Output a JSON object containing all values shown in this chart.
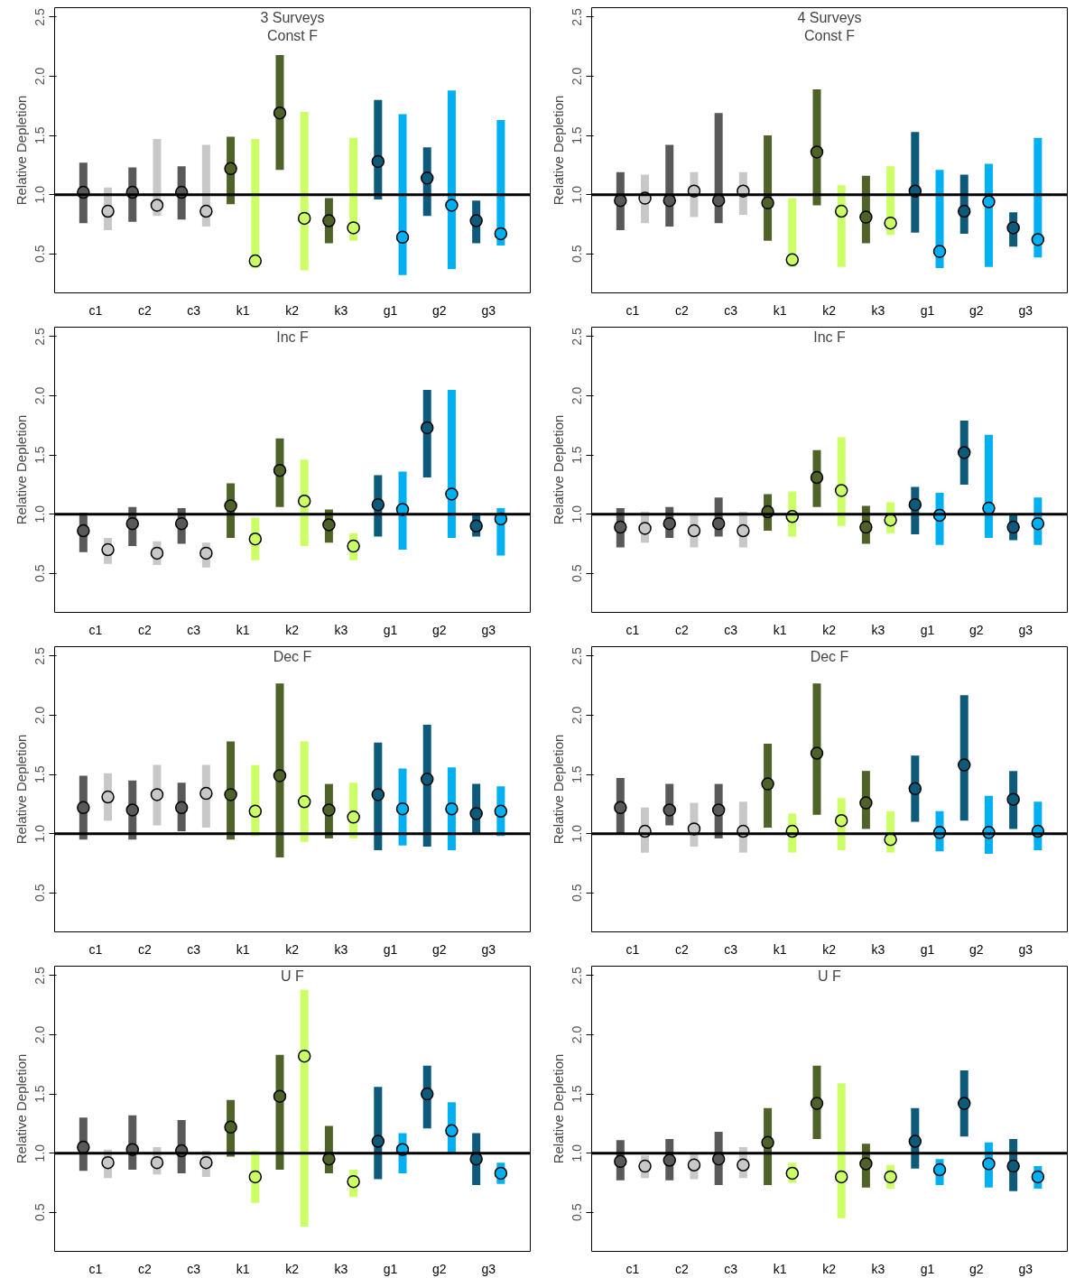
{
  "chart_data": [
    {
      "type": "scatter",
      "title": "3 Surveys\nConst F",
      "ylabel": "Relative Depletion",
      "categories": [
        "c1",
        "c2",
        "c3",
        "k1",
        "k2",
        "k3",
        "g1",
        "g2",
        "g3"
      ],
      "ylim": [
        0.17,
        2.58
      ],
      "yticks": [
        {
          "value": 0.5,
          "label": "0.5"
        },
        {
          "value": 1,
          "label": "1.0"
        },
        {
          "value": 1.5,
          "label": "1.5"
        },
        {
          "value": 2,
          "label": "2.0"
        },
        {
          "value": 2.5,
          "label": "2.5"
        }
      ],
      "ref_lines": [
        {
          "axis": "y",
          "value": 1,
          "color": "#000000"
        }
      ],
      "marker": "circle",
      "series": [
        {
          "colors": [
            "#595959",
            "#595959",
            "#595959",
            "#4f6228",
            "#4f6228",
            "#4f6228",
            "#0e5a7a",
            "#0e5a7a",
            "#0e5a7a"
          ],
          "values": [
            1.02,
            1.02,
            1.02,
            1.22,
            1.69,
            0.78,
            1.28,
            1.14,
            0.78
          ],
          "errors": [
            [
              0.76,
              1.27
            ],
            [
              0.77,
              1.23
            ],
            [
              0.79,
              1.24
            ],
            [
              0.92,
              1.49
            ],
            [
              1.21,
              2.18
            ],
            [
              0.59,
              0.97
            ],
            [
              0.96,
              1.8
            ],
            [
              0.82,
              1.4
            ],
            [
              0.59,
              0.95
            ]
          ]
        },
        {
          "colors": [
            "#c8c8c8",
            "#c8c8c8",
            "#c8c8c8",
            "#ccff66",
            "#ccff66",
            "#ccff66",
            "#00b0f0",
            "#00b0f0",
            "#00b0f0"
          ],
          "values": [
            0.86,
            0.91,
            0.86,
            0.44,
            0.8,
            0.72,
            0.64,
            0.91,
            0.67
          ],
          "errors": [
            [
              0.7,
              1.06
            ],
            [
              0.82,
              1.47
            ],
            [
              0.73,
              1.42
            ],
            [
              0.38,
              1.47
            ],
            [
              0.36,
              1.7
            ],
            [
              0.61,
              1.48
            ],
            [
              0.32,
              1.68
            ],
            [
              0.37,
              1.88
            ],
            [
              0.57,
              1.63
            ]
          ]
        }
      ]
    },
    {
      "type": "scatter",
      "title": "4 Surveys\nConst F",
      "ylabel": "Relative Depletion",
      "categories": [
        "c1",
        "c2",
        "c3",
        "k1",
        "k2",
        "k3",
        "g1",
        "g2",
        "g3"
      ],
      "ylim": [
        0.17,
        2.58
      ],
      "yticks": [
        {
          "value": 0.5,
          "label": "0.5"
        },
        {
          "value": 1,
          "label": "1.0"
        },
        {
          "value": 1.5,
          "label": "1.5"
        },
        {
          "value": 2,
          "label": "2.0"
        },
        {
          "value": 2.5,
          "label": "2.5"
        }
      ],
      "ref_lines": [
        {
          "axis": "y",
          "value": 1,
          "color": "#000000"
        }
      ],
      "marker": "circle",
      "series": [
        {
          "colors": [
            "#595959",
            "#595959",
            "#595959",
            "#4f6228",
            "#4f6228",
            "#4f6228",
            "#0e5a7a",
            "#0e5a7a",
            "#0e5a7a"
          ],
          "values": [
            0.95,
            0.95,
            0.95,
            0.93,
            1.36,
            0.81,
            1.03,
            0.86,
            0.72
          ],
          "errors": [
            [
              0.7,
              1.19
            ],
            [
              0.73,
              1.42
            ],
            [
              0.76,
              1.69
            ],
            [
              0.61,
              1.5
            ],
            [
              0.91,
              1.89
            ],
            [
              0.59,
              1.16
            ],
            [
              0.68,
              1.53
            ],
            [
              0.67,
              1.17
            ],
            [
              0.56,
              0.85
            ]
          ]
        },
        {
          "colors": [
            "#c8c8c8",
            "#c8c8c8",
            "#c8c8c8",
            "#ccff66",
            "#ccff66",
            "#ccff66",
            "#00b0f0",
            "#00b0f0",
            "#00b0f0"
          ],
          "values": [
            0.97,
            1.03,
            1.03,
            0.45,
            0.86,
            0.76,
            0.52,
            0.94,
            0.62
          ],
          "errors": [
            [
              0.76,
              1.17
            ],
            [
              0.81,
              1.19
            ],
            [
              0.83,
              1.19
            ],
            [
              0.39,
              0.97
            ],
            [
              0.39,
              1.08
            ],
            [
              0.66,
              1.24
            ],
            [
              0.38,
              1.21
            ],
            [
              0.39,
              1.26
            ],
            [
              0.47,
              1.48
            ]
          ]
        }
      ]
    },
    {
      "type": "scatter",
      "title": "Inc F",
      "ylabel": "Relative Depletion",
      "categories": [
        "c1",
        "c2",
        "c3",
        "k1",
        "k2",
        "k3",
        "g1",
        "g2",
        "g3"
      ],
      "ylim": [
        0.17,
        2.58
      ],
      "yticks": [
        {
          "value": 0.5,
          "label": "0.5"
        },
        {
          "value": 1,
          "label": "1.0"
        },
        {
          "value": 1.5,
          "label": "1.5"
        },
        {
          "value": 2,
          "label": "2.0"
        },
        {
          "value": 2.5,
          "label": "2.5"
        }
      ],
      "ref_lines": [
        {
          "axis": "y",
          "value": 1,
          "color": "#000000"
        }
      ],
      "marker": "circle",
      "series": [
        {
          "colors": [
            "#595959",
            "#595959",
            "#595959",
            "#4f6228",
            "#4f6228",
            "#4f6228",
            "#0e5a7a",
            "#0e5a7a",
            "#0e5a7a"
          ],
          "values": [
            0.86,
            0.92,
            0.92,
            1.07,
            1.37,
            0.91,
            1.08,
            1.73,
            0.9
          ],
          "errors": [
            [
              0.68,
              1.01
            ],
            [
              0.73,
              1.06
            ],
            [
              0.75,
              1.05
            ],
            [
              0.8,
              1.26
            ],
            [
              1.06,
              1.64
            ],
            [
              0.76,
              1.04
            ],
            [
              0.81,
              1.33
            ],
            [
              1.31,
              2.05
            ],
            [
              0.81,
              1.01
            ]
          ]
        },
        {
          "colors": [
            "#c8c8c8",
            "#c8c8c8",
            "#c8c8c8",
            "#ccff66",
            "#ccff66",
            "#ccff66",
            "#00b0f0",
            "#00b0f0",
            "#00b0f0"
          ],
          "values": [
            0.7,
            0.67,
            0.67,
            0.79,
            1.11,
            0.73,
            1.04,
            1.17,
            0.96
          ],
          "errors": [
            [
              0.58,
              0.8
            ],
            [
              0.57,
              0.77
            ],
            [
              0.55,
              0.76
            ],
            [
              0.61,
              0.97
            ],
            [
              0.73,
              1.46
            ],
            [
              0.61,
              0.84
            ],
            [
              0.7,
              1.36
            ],
            [
              0.8,
              2.05
            ],
            [
              0.65,
              1.05
            ]
          ]
        }
      ]
    },
    {
      "type": "scatter",
      "title": "Inc F",
      "ylabel": "Relative Depletion",
      "categories": [
        "c1",
        "c2",
        "c3",
        "k1",
        "k2",
        "k3",
        "g1",
        "g2",
        "g3"
      ],
      "ylim": [
        0.17,
        2.58
      ],
      "yticks": [
        {
          "value": 0.5,
          "label": "0.5"
        },
        {
          "value": 1,
          "label": "1.0"
        },
        {
          "value": 1.5,
          "label": "1.5"
        },
        {
          "value": 2,
          "label": "2.0"
        },
        {
          "value": 2.5,
          "label": "2.5"
        }
      ],
      "ref_lines": [
        {
          "axis": "y",
          "value": 1,
          "color": "#000000"
        }
      ],
      "marker": "circle",
      "series": [
        {
          "colors": [
            "#595959",
            "#595959",
            "#595959",
            "#4f6228",
            "#4f6228",
            "#4f6228",
            "#0e5a7a",
            "#0e5a7a",
            "#0e5a7a"
          ],
          "values": [
            0.89,
            0.92,
            0.92,
            1.02,
            1.31,
            0.89,
            1.08,
            1.52,
            0.89
          ],
          "errors": [
            [
              0.72,
              1.05
            ],
            [
              0.8,
              1.06
            ],
            [
              0.81,
              1.14
            ],
            [
              0.86,
              1.17
            ],
            [
              1.06,
              1.54
            ],
            [
              0.75,
              1.07
            ],
            [
              0.83,
              1.23
            ],
            [
              1.25,
              1.79
            ],
            [
              0.78,
              1.0
            ]
          ]
        },
        {
          "colors": [
            "#c8c8c8",
            "#c8c8c8",
            "#c8c8c8",
            "#ccff66",
            "#ccff66",
            "#ccff66",
            "#00b0f0",
            "#00b0f0",
            "#00b0f0"
          ],
          "values": [
            0.88,
            0.86,
            0.86,
            0.98,
            1.2,
            0.95,
            0.99,
            1.05,
            0.92
          ],
          "errors": [
            [
              0.76,
              1.02
            ],
            [
              0.72,
              1.0
            ],
            [
              0.72,
              1.02
            ],
            [
              0.81,
              1.19
            ],
            [
              0.9,
              1.65
            ],
            [
              0.84,
              1.1
            ],
            [
              0.74,
              1.18
            ],
            [
              0.8,
              1.67
            ],
            [
              0.74,
              1.14
            ]
          ]
        }
      ]
    },
    {
      "type": "scatter",
      "title": "Dec F",
      "ylabel": "Relative Depletion",
      "categories": [
        "c1",
        "c2",
        "c3",
        "k1",
        "k2",
        "k3",
        "g1",
        "g2",
        "g3"
      ],
      "ylim": [
        0.17,
        2.58
      ],
      "yticks": [
        {
          "value": 0.5,
          "label": "0.5"
        },
        {
          "value": 1,
          "label": "1.0"
        },
        {
          "value": 1.5,
          "label": "1.5"
        },
        {
          "value": 2,
          "label": "2.0"
        },
        {
          "value": 2.5,
          "label": "2.5"
        }
      ],
      "ref_lines": [
        {
          "axis": "y",
          "value": 1,
          "color": "#000000"
        }
      ],
      "marker": "circle",
      "series": [
        {
          "colors": [
            "#595959",
            "#595959",
            "#595959",
            "#4f6228",
            "#4f6228",
            "#4f6228",
            "#0e5a7a",
            "#0e5a7a",
            "#0e5a7a"
          ],
          "values": [
            1.22,
            1.2,
            1.22,
            1.33,
            1.49,
            1.2,
            1.33,
            1.46,
            1.17
          ],
          "errors": [
            [
              0.95,
              1.49
            ],
            [
              0.95,
              1.45
            ],
            [
              1.02,
              1.43
            ],
            [
              0.95,
              1.78
            ],
            [
              0.8,
              2.27
            ],
            [
              0.96,
              1.42
            ],
            [
              0.86,
              1.77
            ],
            [
              0.89,
              1.92
            ],
            [
              0.99,
              1.42
            ]
          ]
        },
        {
          "colors": [
            "#c8c8c8",
            "#c8c8c8",
            "#c8c8c8",
            "#ccff66",
            "#ccff66",
            "#ccff66",
            "#00b0f0",
            "#00b0f0",
            "#00b0f0"
          ],
          "values": [
            1.31,
            1.33,
            1.34,
            1.19,
            1.27,
            1.14,
            1.21,
            1.21,
            1.19
          ],
          "errors": [
            [
              1.11,
              1.51
            ],
            [
              1.07,
              1.58
            ],
            [
              1.05,
              1.58
            ],
            [
              0.98,
              1.58
            ],
            [
              0.93,
              1.78
            ],
            [
              0.96,
              1.43
            ],
            [
              0.9,
              1.55
            ],
            [
              0.86,
              1.56
            ],
            [
              0.98,
              1.4
            ]
          ]
        }
      ]
    },
    {
      "type": "scatter",
      "title": "Dec F",
      "ylabel": "Relative Depletion",
      "categories": [
        "c1",
        "c2",
        "c3",
        "k1",
        "k2",
        "k3",
        "g1",
        "g2",
        "g3"
      ],
      "ylim": [
        0.17,
        2.58
      ],
      "yticks": [
        {
          "value": 0.5,
          "label": "0.5"
        },
        {
          "value": 1,
          "label": "1.0"
        },
        {
          "value": 1.5,
          "label": "1.5"
        },
        {
          "value": 2,
          "label": "2.0"
        },
        {
          "value": 2.5,
          "label": "2.5"
        }
      ],
      "ref_lines": [
        {
          "axis": "y",
          "value": 1,
          "color": "#000000"
        }
      ],
      "marker": "circle",
      "series": [
        {
          "colors": [
            "#595959",
            "#595959",
            "#595959",
            "#4f6228",
            "#4f6228",
            "#4f6228",
            "#0e5a7a",
            "#0e5a7a",
            "#0e5a7a"
          ],
          "values": [
            1.22,
            1.2,
            1.2,
            1.42,
            1.68,
            1.26,
            1.38,
            1.58,
            1.29
          ],
          "errors": [
            [
              1.0,
              1.47
            ],
            [
              1.07,
              1.42
            ],
            [
              0.96,
              1.42
            ],
            [
              1.05,
              1.76
            ],
            [
              1.16,
              2.27
            ],
            [
              1.04,
              1.53
            ],
            [
              1.1,
              1.66
            ],
            [
              1.11,
              2.17
            ],
            [
              1.04,
              1.53
            ]
          ]
        },
        {
          "colors": [
            "#c8c8c8",
            "#c8c8c8",
            "#c8c8c8",
            "#ccff66",
            "#ccff66",
            "#ccff66",
            "#00b0f0",
            "#00b0f0",
            "#00b0f0"
          ],
          "values": [
            1.02,
            1.04,
            1.02,
            1.02,
            1.11,
            0.95,
            1.01,
            1.01,
            1.02
          ],
          "errors": [
            [
              0.84,
              1.22
            ],
            [
              0.89,
              1.26
            ],
            [
              0.84,
              1.27
            ],
            [
              0.84,
              1.17
            ],
            [
              0.86,
              1.3
            ],
            [
              0.84,
              1.19
            ],
            [
              0.85,
              1.19
            ],
            [
              0.83,
              1.32
            ],
            [
              0.86,
              1.27
            ]
          ]
        }
      ]
    },
    {
      "type": "scatter",
      "title": "U F",
      "ylabel": "Relative Depletion",
      "categories": [
        "c1",
        "c2",
        "c3",
        "k1",
        "k2",
        "k3",
        "g1",
        "g2",
        "g3"
      ],
      "ylim": [
        0.17,
        2.58
      ],
      "yticks": [
        {
          "value": 0.5,
          "label": "0.5"
        },
        {
          "value": 1,
          "label": "1.0"
        },
        {
          "value": 1.5,
          "label": "1.5"
        },
        {
          "value": 2,
          "label": "2.0"
        },
        {
          "value": 2.5,
          "label": "2.5"
        }
      ],
      "ref_lines": [
        {
          "axis": "y",
          "value": 1,
          "color": "#000000"
        }
      ],
      "marker": "circle",
      "series": [
        {
          "colors": [
            "#595959",
            "#595959",
            "#595959",
            "#4f6228",
            "#4f6228",
            "#4f6228",
            "#0e5a7a",
            "#0e5a7a",
            "#0e5a7a"
          ],
          "values": [
            1.05,
            1.03,
            1.02,
            1.22,
            1.48,
            0.95,
            1.1,
            1.5,
            0.95
          ],
          "errors": [
            [
              0.85,
              1.3
            ],
            [
              0.86,
              1.32
            ],
            [
              0.83,
              1.28
            ],
            [
              0.97,
              1.45
            ],
            [
              0.86,
              1.83
            ],
            [
              0.83,
              1.23
            ],
            [
              0.78,
              1.56
            ],
            [
              1.21,
              1.74
            ],
            [
              0.73,
              1.17
            ]
          ]
        },
        {
          "colors": [
            "#c8c8c8",
            "#c8c8c8",
            "#c8c8c8",
            "#ccff66",
            "#ccff66",
            "#ccff66",
            "#00b0f0",
            "#00b0f0",
            "#00b0f0"
          ],
          "values": [
            0.92,
            0.92,
            0.92,
            0.8,
            1.82,
            0.76,
            1.03,
            1.19,
            0.83
          ],
          "errors": [
            [
              0.79,
              1.03
            ],
            [
              0.82,
              1.05
            ],
            [
              0.8,
              1.02
            ],
            [
              0.58,
              1.02
            ],
            [
              0.38,
              2.38
            ],
            [
              0.63,
              0.86
            ],
            [
              0.83,
              1.17
            ],
            [
              0.99,
              1.43
            ],
            [
              0.74,
              0.92
            ]
          ]
        }
      ]
    },
    {
      "type": "scatter",
      "title": "U F",
      "ylabel": "Relative Depletion",
      "categories": [
        "c1",
        "c2",
        "c3",
        "k1",
        "k2",
        "k3",
        "g1",
        "g2",
        "g3"
      ],
      "ylim": [
        0.17,
        2.58
      ],
      "yticks": [
        {
          "value": 0.5,
          "label": "0.5"
        },
        {
          "value": 1,
          "label": "1.0"
        },
        {
          "value": 1.5,
          "label": "1.5"
        },
        {
          "value": 2,
          "label": "2.0"
        },
        {
          "value": 2.5,
          "label": "2.5"
        }
      ],
      "ref_lines": [
        {
          "axis": "y",
          "value": 1,
          "color": "#000000"
        }
      ],
      "marker": "circle",
      "series": [
        {
          "colors": [
            "#595959",
            "#595959",
            "#595959",
            "#4f6228",
            "#4f6228",
            "#4f6228",
            "#0e5a7a",
            "#0e5a7a",
            "#0e5a7a"
          ],
          "values": [
            0.93,
            0.94,
            0.95,
            1.09,
            1.42,
            0.91,
            1.1,
            1.42,
            0.89
          ],
          "errors": [
            [
              0.77,
              1.11
            ],
            [
              0.77,
              1.12
            ],
            [
              0.73,
              1.18
            ],
            [
              0.73,
              1.38
            ],
            [
              1.12,
              1.74
            ],
            [
              0.71,
              1.08
            ],
            [
              0.87,
              1.38
            ],
            [
              1.14,
              1.7
            ],
            [
              0.68,
              1.12
            ]
          ]
        },
        {
          "colors": [
            "#c8c8c8",
            "#c8c8c8",
            "#c8c8c8",
            "#ccff66",
            "#ccff66",
            "#ccff66",
            "#00b0f0",
            "#00b0f0",
            "#00b0f0"
          ],
          "values": [
            0.89,
            0.9,
            0.9,
            0.83,
            0.8,
            0.8,
            0.86,
            0.91,
            0.8
          ],
          "errors": [
            [
              0.79,
              0.98
            ],
            [
              0.78,
              1.0
            ],
            [
              0.79,
              1.05
            ],
            [
              0.75,
              0.92
            ],
            [
              0.45,
              1.59
            ],
            [
              0.7,
              0.9
            ],
            [
              0.73,
              0.95
            ],
            [
              0.71,
              1.09
            ],
            [
              0.7,
              0.89
            ]
          ]
        }
      ]
    }
  ]
}
